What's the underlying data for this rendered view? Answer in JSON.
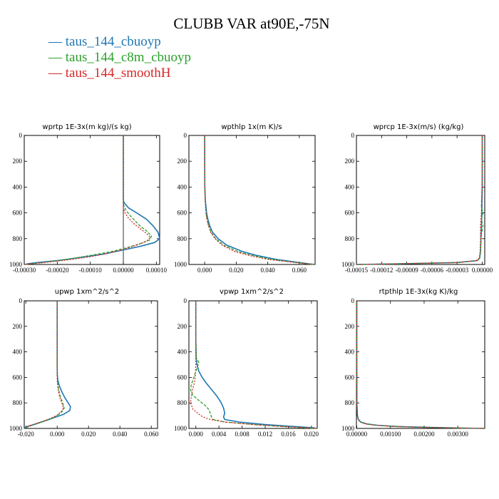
{
  "title": "CLUBB VAR at90E,-75N",
  "legend": [
    {
      "label": "taus_144_cbuoyp",
      "color": "#1f77b4"
    },
    {
      "label": "taus_144_c8m_cbuoyp",
      "color": "#2ca02c"
    },
    {
      "label": "taus_144_smoothH",
      "color": "#d62728"
    }
  ],
  "chart_data": [
    {
      "type": "line",
      "title": "wprtp  1E-3x(m kg)/(s kg)",
      "xlim": [
        -0.0003,
        0.00011
      ],
      "ylim": [
        1000,
        0
      ],
      "x_ticks": [
        -0.0003,
        -0.0002,
        -0.0001,
        0.0,
        0.0001
      ],
      "x_tick_labels": [
        "-0.00030",
        "-0.00020",
        "-0.00010",
        "0.00000",
        "0.00010"
      ],
      "y_ticks": [
        0,
        200,
        400,
        600,
        800,
        1000
      ],
      "y_tick_labels": [
        "0",
        "200",
        "400",
        "600",
        "800",
        "1000"
      ],
      "zero_line": true,
      "series": [
        {
          "name": "taus_144_cbuoyp",
          "color": "#1f77b4",
          "dash": "",
          "y": [
            0,
            100,
            200,
            300,
            400,
            500,
            520,
            560,
            600,
            650,
            700,
            750,
            800,
            830,
            860,
            890,
            920,
            950,
            970,
            985,
            995,
            1000
          ],
          "x": [
            0,
            0,
            0,
            0,
            0,
            0,
            2e-06,
            1.5e-05,
            4e-05,
            7e-05,
            9e-05,
            0.000105,
            0.00011,
            9.5e-05,
            5e-05,
            -5e-06,
            -6e-05,
            -0.00014,
            -0.0002,
            -0.00026,
            -0.00029,
            -0.0003
          ]
        },
        {
          "name": "taus_144_c8m_cbuoyp",
          "color": "#2ca02c",
          "dash": "4,2",
          "y": [
            0,
            100,
            200,
            300,
            400,
            500,
            540,
            580,
            620,
            660,
            700,
            740,
            780,
            810,
            840,
            870,
            900,
            930,
            960,
            980,
            995,
            1000
          ],
          "x": [
            0,
            0,
            0,
            0,
            0,
            0,
            1e-06,
            8e-06,
            2e-05,
            3.5e-05,
            5e-05,
            7e-05,
            8.5e-05,
            8e-05,
            5e-05,
            1e-05,
            -3.5e-05,
            -0.0001,
            -0.00017,
            -0.00023,
            -0.00028,
            -0.0003
          ]
        },
        {
          "name": "taus_144_smoothH",
          "color": "#d62728",
          "dash": "2,2",
          "y": [
            0,
            100,
            200,
            300,
            400,
            500,
            560,
            600,
            640,
            680,
            720,
            760,
            790,
            820,
            850,
            880,
            910,
            940,
            965,
            985,
            995,
            1000
          ],
          "x": [
            0,
            0,
            0,
            0,
            0,
            0,
            0,
            5e-06,
            1.5e-05,
            3e-05,
            5e-05,
            7e-05,
            8.2e-05,
            7e-05,
            4e-05,
            5e-06,
            -4e-05,
            -0.0001,
            -0.00017,
            -0.00024,
            -0.00028,
            -0.0003
          ]
        }
      ]
    },
    {
      "type": "line",
      "title": "wpthlp  1x(m K)/s",
      "xlim": [
        -0.01,
        0.07
      ],
      "ylim": [
        1000,
        0
      ],
      "x_ticks": [
        0.0,
        0.02,
        0.04,
        0.06
      ],
      "x_tick_labels": [
        "0.000",
        "0.020",
        "0.040",
        "0.060"
      ],
      "y_ticks": [
        0,
        200,
        400,
        600,
        800,
        1000
      ],
      "y_tick_labels": [
        "0",
        "200",
        "400",
        "600",
        "800",
        "1000"
      ],
      "zero_line": false,
      "series": [
        {
          "name": "taus_144_cbuoyp",
          "color": "#1f77b4",
          "dash": "",
          "y": [
            0,
            200,
            400,
            500,
            600,
            650,
            700,
            750,
            800,
            850,
            900,
            930,
            960,
            980,
            995,
            1000
          ],
          "x": [
            0,
            0,
            0.0001,
            0.0004,
            0.0012,
            0.002,
            0.0032,
            0.005,
            0.0085,
            0.014,
            0.024,
            0.033,
            0.045,
            0.057,
            0.066,
            0.07
          ]
        },
        {
          "name": "taus_144_c8m_cbuoyp",
          "color": "#2ca02c",
          "dash": "4,2",
          "y": [
            0,
            200,
            400,
            500,
            600,
            650,
            700,
            750,
            800,
            850,
            900,
            930,
            960,
            980,
            995,
            1000
          ],
          "x": [
            0,
            0,
            0.0001,
            0.0003,
            0.0009,
            0.0015,
            0.0025,
            0.004,
            0.007,
            0.012,
            0.021,
            0.03,
            0.042,
            0.055,
            0.065,
            0.07
          ]
        },
        {
          "name": "taus_144_smoothH",
          "color": "#d62728",
          "dash": "2,2",
          "y": [
            0,
            200,
            400,
            500,
            600,
            650,
            700,
            750,
            800,
            850,
            900,
            930,
            960,
            980,
            995,
            1000
          ],
          "x": [
            0,
            0,
            0.0001,
            0.0003,
            0.0008,
            0.0014,
            0.0024,
            0.0038,
            0.0065,
            0.011,
            0.019,
            0.028,
            0.04,
            0.054,
            0.065,
            0.07
          ]
        }
      ]
    },
    {
      "type": "line",
      "title": "wprcp  1E-3x(m/s) (kg/kg)",
      "xlim": [
        -0.00015,
        3e-06
      ],
      "ylim": [
        1000,
        0
      ],
      "x_ticks": [
        -0.00015,
        -0.00012,
        -9e-05,
        -6e-05,
        -3e-05,
        0.0
      ],
      "x_tick_labels": [
        "-0.00015",
        "-0.00012",
        "-0.00009",
        "-0.00006",
        "-0.00003",
        "0.00000"
      ],
      "y_ticks": [
        0,
        200,
        400,
        600,
        800,
        1000
      ],
      "y_tick_labels": [
        "0",
        "200",
        "400",
        "600",
        "800",
        "1000"
      ],
      "zero_line": false,
      "series": [
        {
          "name": "taus_144_cbuoyp",
          "color": "#1f77b4",
          "dash": "",
          "y": [
            0,
            200,
            400,
            600,
            700,
            800,
            900,
            950,
            970,
            985,
            995,
            1000
          ],
          "x": [
            0,
            0,
            0,
            -5e-07,
            -1e-06,
            -1.5e-06,
            -2e-06,
            -3e-06,
            -6e-06,
            -3e-05,
            -0.0001,
            -0.00015
          ]
        },
        {
          "name": "taus_144_c8m_cbuoyp",
          "color": "#2ca02c",
          "dash": "4,2",
          "y": [
            0,
            200,
            400,
            550,
            600,
            650,
            700,
            750,
            800,
            900,
            950,
            970,
            985,
            995,
            1000
          ],
          "x": [
            0,
            0,
            -3e-07,
            -1e-06,
            1e-06,
            -1e-06,
            1e-06,
            -5e-07,
            -1.5e-06,
            -2e-06,
            -3e-06,
            -6e-06,
            -3e-05,
            -0.0001,
            -0.00015
          ]
        },
        {
          "name": "taus_144_smoothH",
          "color": "#d62728",
          "dash": "2,2",
          "y": [
            0,
            200,
            400,
            600,
            700,
            800,
            900,
            950,
            970,
            985,
            995,
            1000
          ],
          "x": [
            0,
            0,
            0,
            -1e-06,
            -2e-06,
            -2e-06,
            -2.5e-06,
            -3.5e-06,
            -7e-06,
            -3e-05,
            -0.0001,
            -0.00015
          ]
        }
      ]
    },
    {
      "type": "line",
      "title": "upwp  1xm^2/s^2",
      "xlim": [
        -0.021,
        0.064
      ],
      "ylim": [
        1000,
        0
      ],
      "x_ticks": [
        -0.02,
        0.0,
        0.02,
        0.04,
        0.06
      ],
      "x_tick_labels": [
        "-0.020",
        "0.000",
        "0.020",
        "0.040",
        "0.060"
      ],
      "y_ticks": [
        0,
        200,
        400,
        600,
        800,
        1000
      ],
      "y_tick_labels": [
        "0",
        "200",
        "400",
        "600",
        "800",
        "1000"
      ],
      "zero_line": false,
      "series": [
        {
          "name": "taus_144_cbuoyp",
          "color": "#1f77b4",
          "dash": "",
          "y": [
            0,
            200,
            400,
            500,
            580,
            620,
            660,
            700,
            750,
            800,
            830,
            860,
            890,
            920,
            950,
            970,
            985,
            995,
            1000
          ],
          "x": [
            0,
            0,
            0,
            0,
            0.0001,
            0.0004,
            0.0012,
            0.0025,
            0.0045,
            0.007,
            0.0085,
            0.008,
            0.004,
            -0.003,
            -0.01,
            -0.015,
            -0.019,
            -0.021,
            -0.021
          ]
        },
        {
          "name": "taus_144_c8m_cbuoyp",
          "color": "#2ca02c",
          "dash": "4,2",
          "y": [
            0,
            200,
            400,
            500,
            600,
            650,
            700,
            750,
            800,
            840,
            870,
            900,
            930,
            960,
            980,
            995,
            1000
          ],
          "x": [
            0,
            0,
            0,
            0,
            0.0001,
            0.0004,
            0.001,
            0.002,
            0.0035,
            0.0045,
            0.003,
            0,
            -0.005,
            -0.012,
            -0.017,
            -0.02,
            -0.021
          ]
        },
        {
          "name": "taus_144_smoothH",
          "color": "#d62728",
          "dash": "2,2",
          "y": [
            0,
            200,
            400,
            500,
            600,
            650,
            700,
            750,
            800,
            840,
            870,
            900,
            930,
            960,
            980,
            995,
            1000
          ],
          "x": [
            0,
            0,
            0,
            0,
            0,
            0.0002,
            0.0007,
            0.0015,
            0.003,
            0.004,
            0.0025,
            -0.0005,
            -0.006,
            -0.013,
            -0.018,
            -0.02,
            -0.021
          ]
        }
      ]
    },
    {
      "type": "line",
      "title": "vpwp  1xm^2/s^2",
      "xlim": [
        -0.0012,
        0.021
      ],
      "ylim": [
        1000,
        0
      ],
      "x_ticks": [
        0.0,
        0.004,
        0.008,
        0.012,
        0.016,
        0.02
      ],
      "x_tick_labels": [
        "0.000",
        "0.004",
        "0.008",
        "0.012",
        "0.016",
        "0.020"
      ],
      "y_ticks": [
        0,
        200,
        400,
        600,
        800,
        1000
      ],
      "y_tick_labels": [
        "0",
        "200",
        "400",
        "600",
        "800",
        "1000"
      ],
      "zero_line": false,
      "series": [
        {
          "name": "taus_144_cbuoyp",
          "color": "#1f77b4",
          "dash": "",
          "y": [
            0,
            300,
            450,
            500,
            550,
            600,
            650,
            700,
            750,
            800,
            840,
            880,
            910,
            930,
            950,
            970,
            985,
            995,
            1000
          ],
          "x": [
            0,
            0,
            5e-05,
            0.0002,
            0.0005,
            0.0011,
            0.0019,
            0.0028,
            0.0037,
            0.0044,
            0.0048,
            0.005,
            0.0048,
            0.005,
            0.0075,
            0.012,
            0.017,
            0.0203,
            0.021
          ]
        },
        {
          "name": "taus_144_c8m_cbuoyp",
          "color": "#2ca02c",
          "dash": "4,2",
          "y": [
            0,
            300,
            450,
            480,
            500,
            540,
            580,
            620,
            660,
            700,
            740,
            780,
            820,
            850,
            880,
            910,
            930,
            950,
            970,
            985,
            995,
            1000
          ],
          "x": [
            0,
            0,
            0.0001,
            0.0005,
            0.0004,
            0.0001,
            -0.0002,
            -0.0005,
            -0.0008,
            -0.0009,
            -0.0005,
            0.0005,
            0.0016,
            0.0022,
            0.0025,
            0.0027,
            0.003,
            0.005,
            0.01,
            0.015,
            0.019,
            0.021
          ]
        },
        {
          "name": "taus_144_smoothH",
          "color": "#d62728",
          "dash": "2,2",
          "y": [
            0,
            300,
            500,
            600,
            650,
            700,
            750,
            800,
            850,
            880,
            910,
            930,
            950,
            970,
            985,
            995,
            1000
          ],
          "x": [
            0,
            0,
            0,
            -0.0001,
            -0.0003,
            -0.0006,
            -0.0008,
            -0.0009,
            -0.0005,
            0.0003,
            0.0012,
            0.0025,
            0.005,
            0.01,
            0.015,
            0.019,
            0.021
          ]
        }
      ]
    },
    {
      "type": "line",
      "title": "rtpthlp  1E-3x(kg K)/kg",
      "xlim": [
        -1e-05,
        0.0038
      ],
      "ylim": [
        1000,
        0
      ],
      "x_ticks": [
        0.0,
        0.001,
        0.002,
        0.003
      ],
      "x_tick_labels": [
        "0.00000",
        "0.00100",
        "0.00200",
        "0.00300"
      ],
      "y_ticks": [
        0,
        200,
        400,
        600,
        800,
        1000
      ],
      "y_tick_labels": [
        "0",
        "200",
        "400",
        "600",
        "800",
        "1000"
      ],
      "zero_line": false,
      "series": [
        {
          "name": "taus_144_cbuoyp",
          "color": "#1f77b4",
          "dash": "",
          "y": [
            0,
            500,
            800,
            900,
            930,
            950,
            965,
            975,
            985,
            992,
            997,
            1000
          ],
          "x": [
            0,
            0,
            5e-06,
            2e-05,
            5e-05,
            0.00012,
            0.0003,
            0.0006,
            0.0012,
            0.0022,
            0.0032,
            0.0038
          ]
        },
        {
          "name": "taus_144_c8m_cbuoyp",
          "color": "#2ca02c",
          "dash": "4,2",
          "y": [
            0,
            500,
            800,
            900,
            930,
            950,
            965,
            975,
            985,
            992,
            997,
            1000
          ],
          "x": [
            0,
            0,
            4e-06,
            1.8e-05,
            4.5e-05,
            0.00011,
            0.00028,
            0.00058,
            0.00115,
            0.0021,
            0.0031,
            0.0038
          ]
        },
        {
          "name": "taus_144_smoothH",
          "color": "#d62728",
          "dash": "2,2",
          "y": [
            0,
            500,
            800,
            900,
            930,
            950,
            965,
            975,
            985,
            992,
            997,
            1000
          ],
          "x": [
            0,
            0,
            4e-06,
            1.6e-05,
            4e-05,
            0.0001,
            0.00026,
            0.00055,
            0.0011,
            0.002,
            0.003,
            0.0038
          ]
        }
      ]
    }
  ]
}
